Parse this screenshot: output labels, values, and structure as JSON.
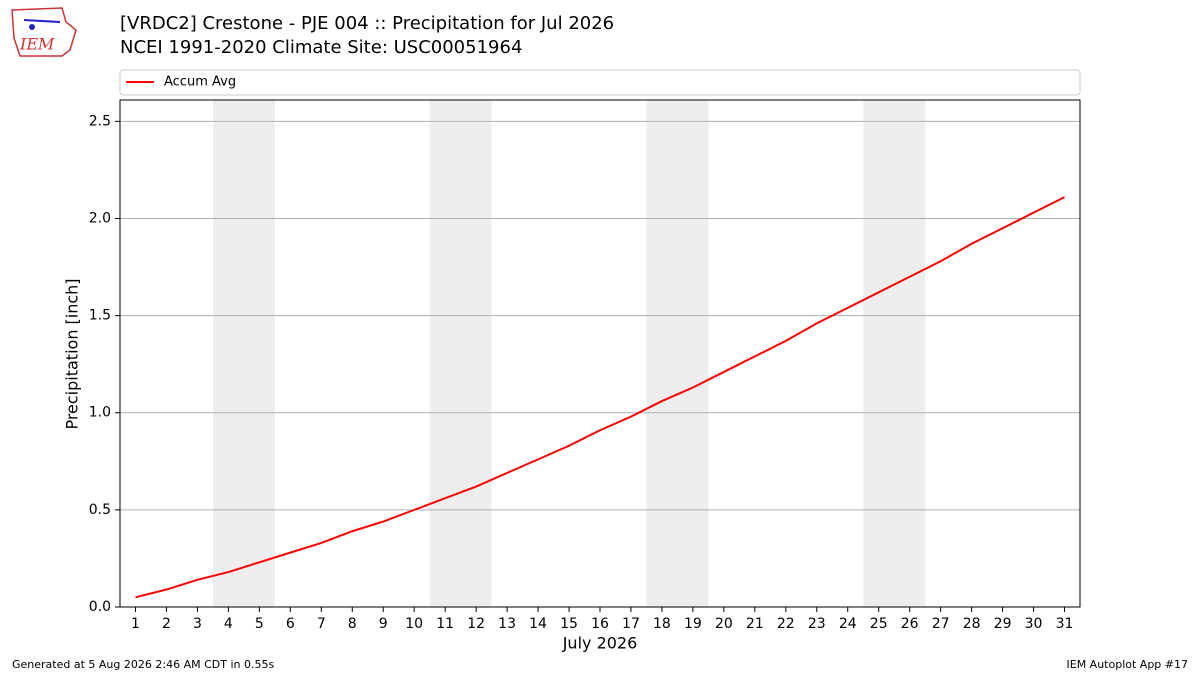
{
  "logo_text": "IEM",
  "footer": {
    "left": "Generated at 5 Aug 2026 2:46 AM CDT in 0.55s",
    "right": "IEM Autoplot App #17"
  },
  "chart_data": {
    "type": "line",
    "title": "[VRDC2] Crestone - PJE 004 :: Precipitation for Jul 2026",
    "subtitle": "NCEI 1991-2020 Climate Site: USC00051964",
    "xlabel": "July 2026",
    "ylabel": "Precipitation [inch]",
    "x": [
      1,
      2,
      3,
      4,
      5,
      6,
      7,
      8,
      9,
      10,
      11,
      12,
      13,
      14,
      15,
      16,
      17,
      18,
      19,
      20,
      21,
      22,
      23,
      24,
      25,
      26,
      27,
      28,
      29,
      30,
      31
    ],
    "series": [
      {
        "name": "Accum Avg",
        "color": "#ff0000",
        "values": [
          0.05,
          0.09,
          0.14,
          0.18,
          0.23,
          0.28,
          0.33,
          0.39,
          0.44,
          0.5,
          0.56,
          0.62,
          0.69,
          0.76,
          0.83,
          0.91,
          0.98,
          1.06,
          1.13,
          1.21,
          1.29,
          1.37,
          1.46,
          1.54,
          1.62,
          1.7,
          1.78,
          1.87,
          1.95,
          2.03,
          2.11
        ]
      }
    ],
    "xlim": [
      0.5,
      31.5
    ],
    "xticks": [
      1,
      2,
      3,
      4,
      5,
      6,
      7,
      8,
      9,
      10,
      11,
      12,
      13,
      14,
      15,
      16,
      17,
      18,
      19,
      20,
      21,
      22,
      23,
      24,
      25,
      26,
      27,
      28,
      29,
      30,
      31
    ],
    "ylim": [
      0,
      2.61
    ],
    "yticks": [
      {
        "value": 0,
        "label": "0.0"
      },
      0.5,
      {
        "value": 1,
        "label": "1.0"
      },
      1.5,
      {
        "value": 2,
        "label": "2.0"
      },
      2.5
    ],
    "grid": true,
    "weekend_spans": [
      [
        3.5,
        5.5
      ],
      [
        10.5,
        12.5
      ],
      [
        17.5,
        19.5
      ],
      [
        24.5,
        26.5
      ]
    ],
    "weekend_color": "#eeeeee",
    "legend": "top"
  }
}
